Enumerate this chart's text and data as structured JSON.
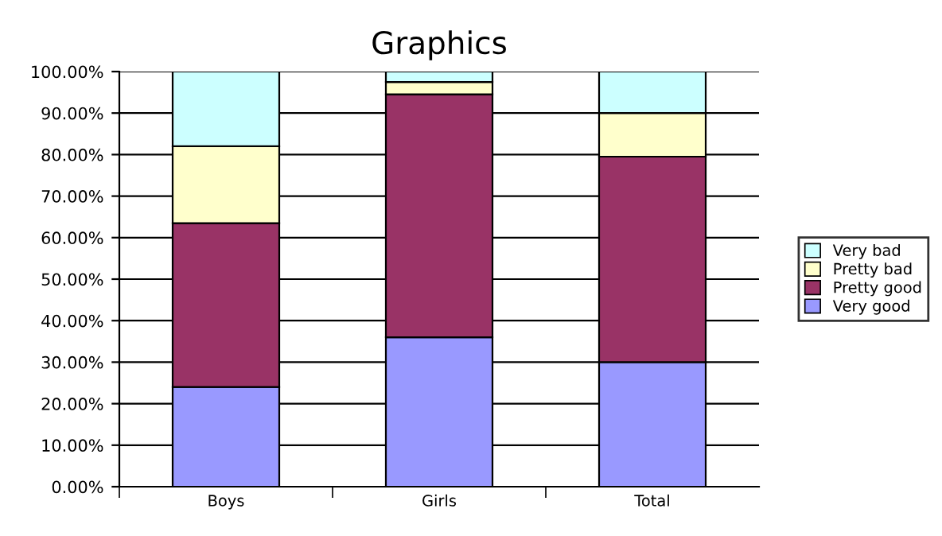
{
  "chart_data": {
    "type": "bar",
    "title": "Graphics",
    "stacked": true,
    "categories": [
      "Boys",
      "Girls",
      "Total"
    ],
    "series": [
      {
        "name": "Very good",
        "color": "#9999ff",
        "values": [
          24,
          36,
          30
        ]
      },
      {
        "name": "Pretty good",
        "color": "#993366",
        "values": [
          39.5,
          58.5,
          49.5
        ]
      },
      {
        "name": "Pretty bad",
        "color": "#ffffcc",
        "values": [
          18.5,
          3,
          10.5
        ]
      },
      {
        "name": "Very bad",
        "color": "#ccffff",
        "values": [
          18,
          2.5,
          10
        ]
      }
    ],
    "ylim": [
      0,
      100
    ],
    "yticks": [
      {
        "value": 0,
        "label": "0.00%"
      },
      {
        "value": 10,
        "label": "10.00%"
      },
      {
        "value": 20,
        "label": "20.00%"
      },
      {
        "value": 30,
        "label": "30.00%"
      },
      {
        "value": 40,
        "label": "40.00%"
      },
      {
        "value": 50,
        "label": "50.00%"
      },
      {
        "value": 60,
        "label": "60.00%"
      },
      {
        "value": 70,
        "label": "70.00%"
      },
      {
        "value": 80,
        "label": "80.00%"
      },
      {
        "value": 90,
        "label": "90.00%"
      },
      {
        "value": 100,
        "label": "100.00%"
      }
    ],
    "grid": "y",
    "legend": "right"
  }
}
